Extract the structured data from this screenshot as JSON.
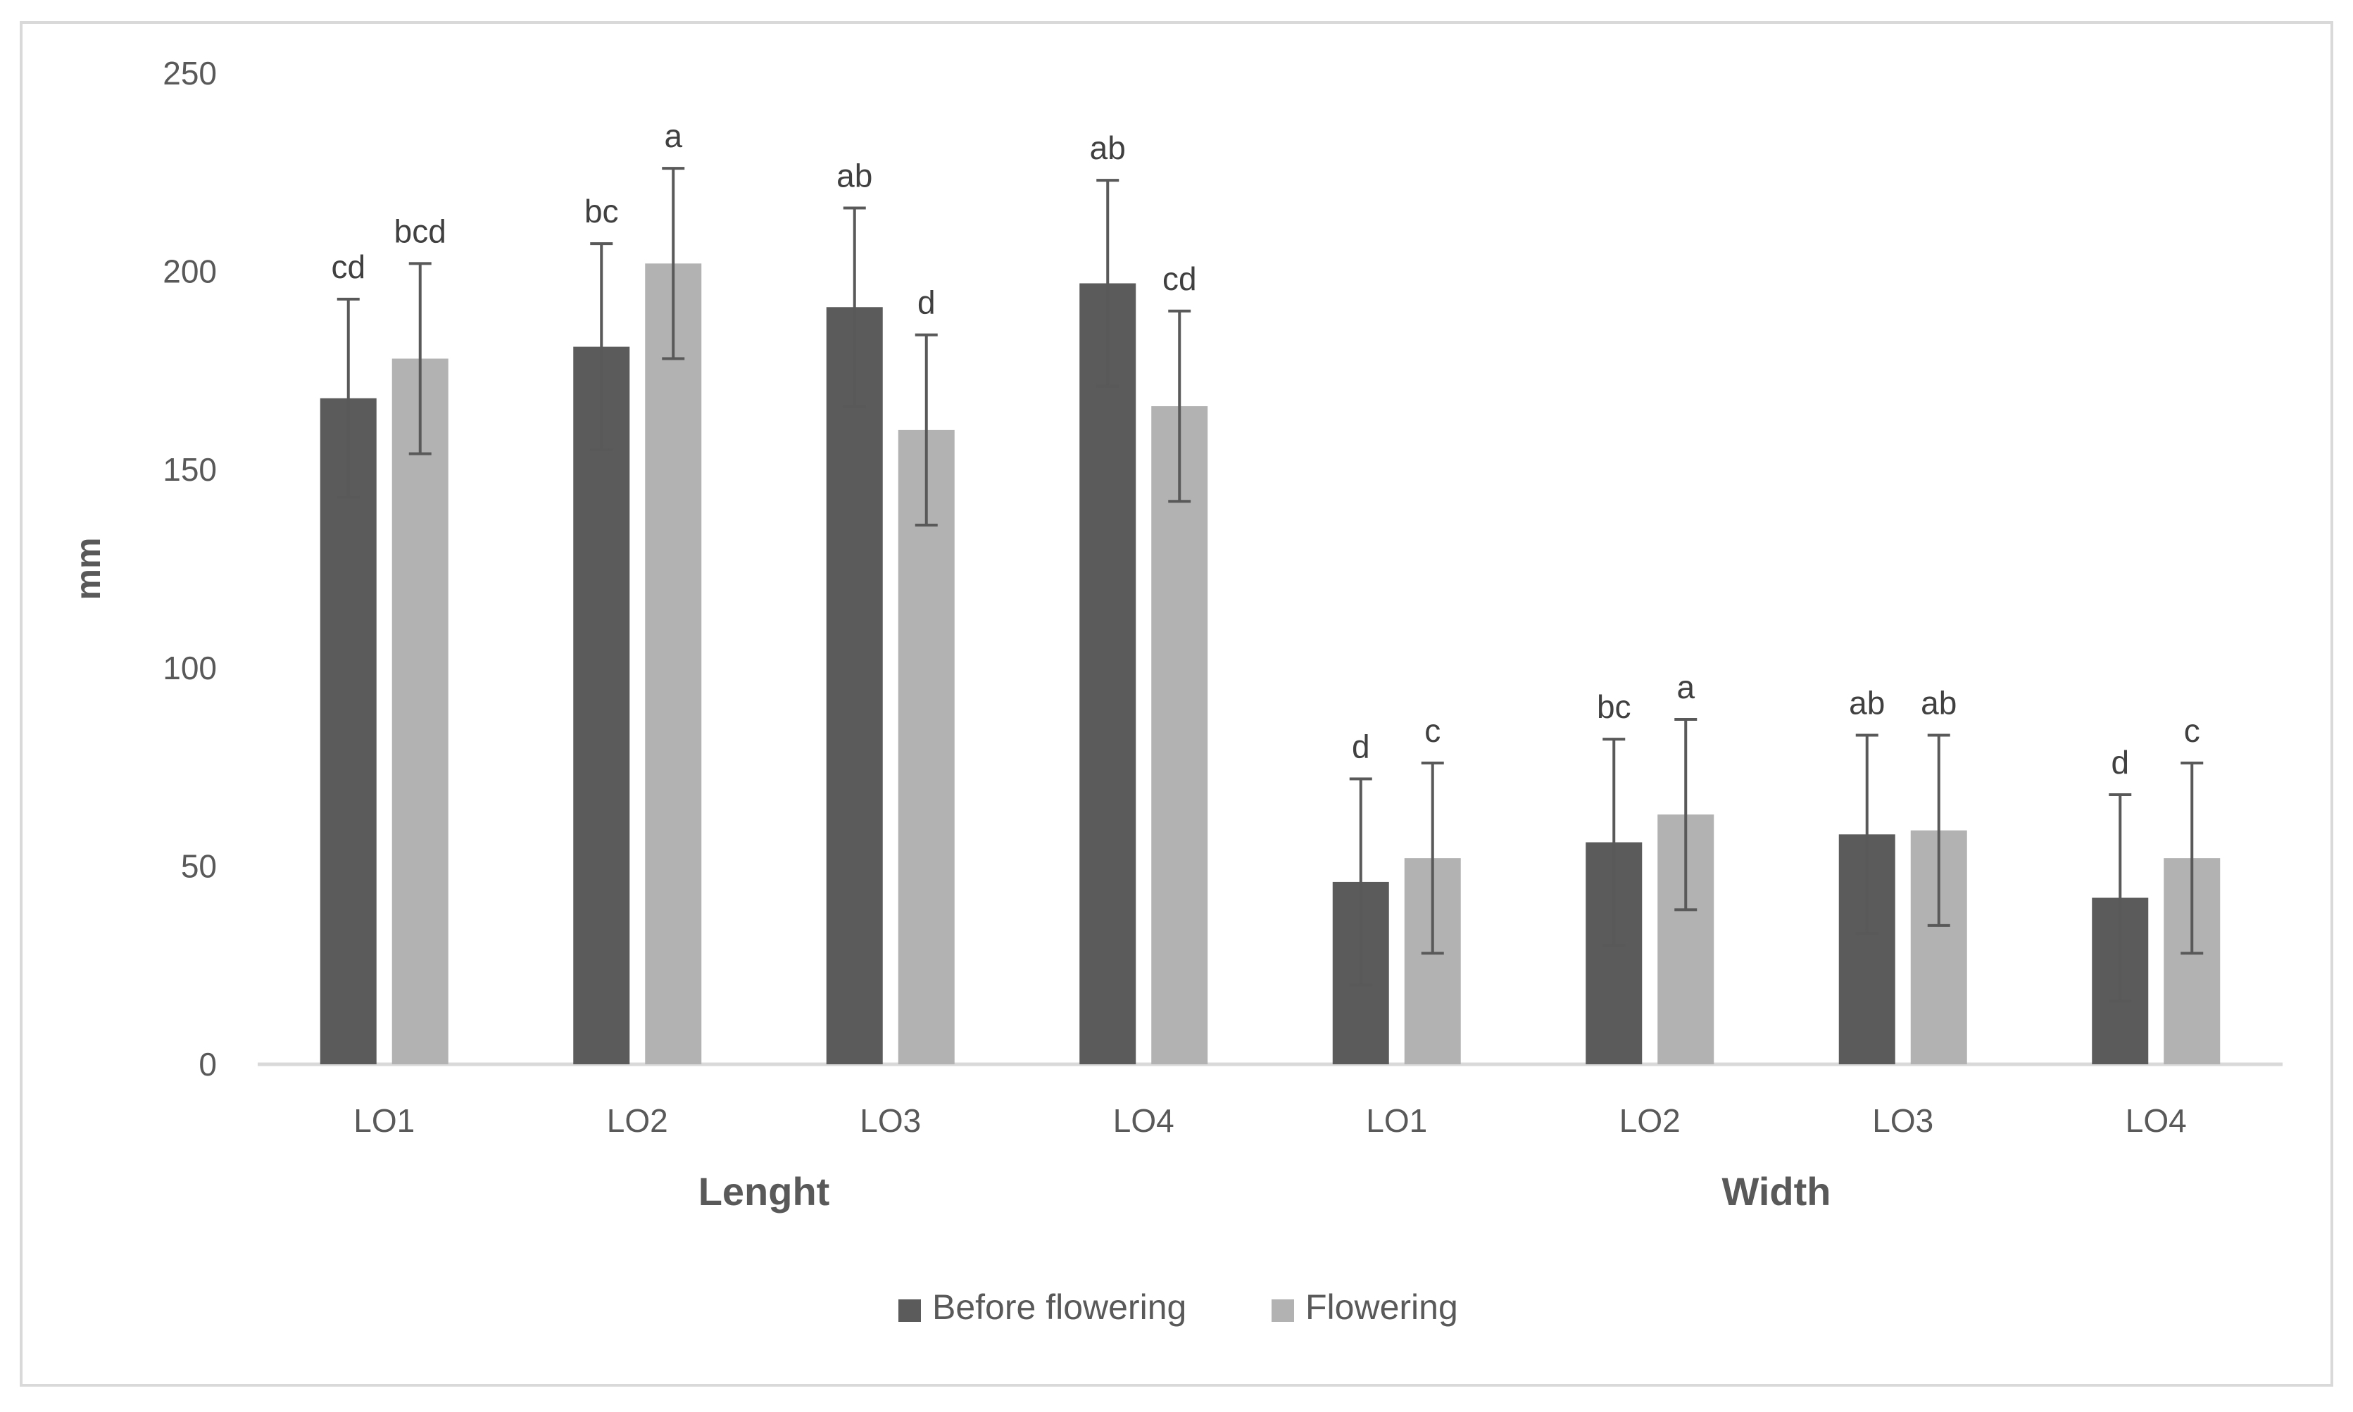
{
  "chart_data": {
    "type": "bar",
    "title": "",
    "xlabel": "",
    "ylabel": "mm",
    "ylim": [
      0,
      250
    ],
    "yticks": [
      0,
      50,
      100,
      150,
      200,
      250
    ],
    "categories": [
      "LO1",
      "LO2",
      "LO3",
      "LO4",
      "LO1",
      "LO2",
      "LO3",
      "LO4"
    ],
    "groups": [
      {
        "label": "Lenght",
        "start": 0,
        "end": 3
      },
      {
        "label": "Width",
        "start": 4,
        "end": 7
      }
    ],
    "series": [
      {
        "name": "Before flowering",
        "color": "#5b5b5b",
        "values": [
          168,
          181,
          191,
          197,
          46,
          56,
          58,
          42
        ],
        "errors": [
          25,
          26,
          25,
          26,
          26,
          26,
          25,
          26
        ],
        "labels": [
          "cd",
          "bc",
          "ab",
          "ab",
          "d",
          "bc",
          "ab",
          "d"
        ]
      },
      {
        "name": "Flowering",
        "color": "#b2b2b2",
        "values": [
          178,
          202,
          160,
          166,
          52,
          63,
          59,
          52
        ],
        "errors": [
          24,
          24,
          24,
          24,
          24,
          24,
          24,
          24
        ],
        "labels": [
          "bcd",
          "a",
          "d",
          "cd",
          "c",
          "a",
          "ab",
          "c"
        ]
      }
    ],
    "grid": false,
    "legend_position": "bottom",
    "axis_color": "#d9d9d9",
    "error_bar_color": "#595959"
  }
}
